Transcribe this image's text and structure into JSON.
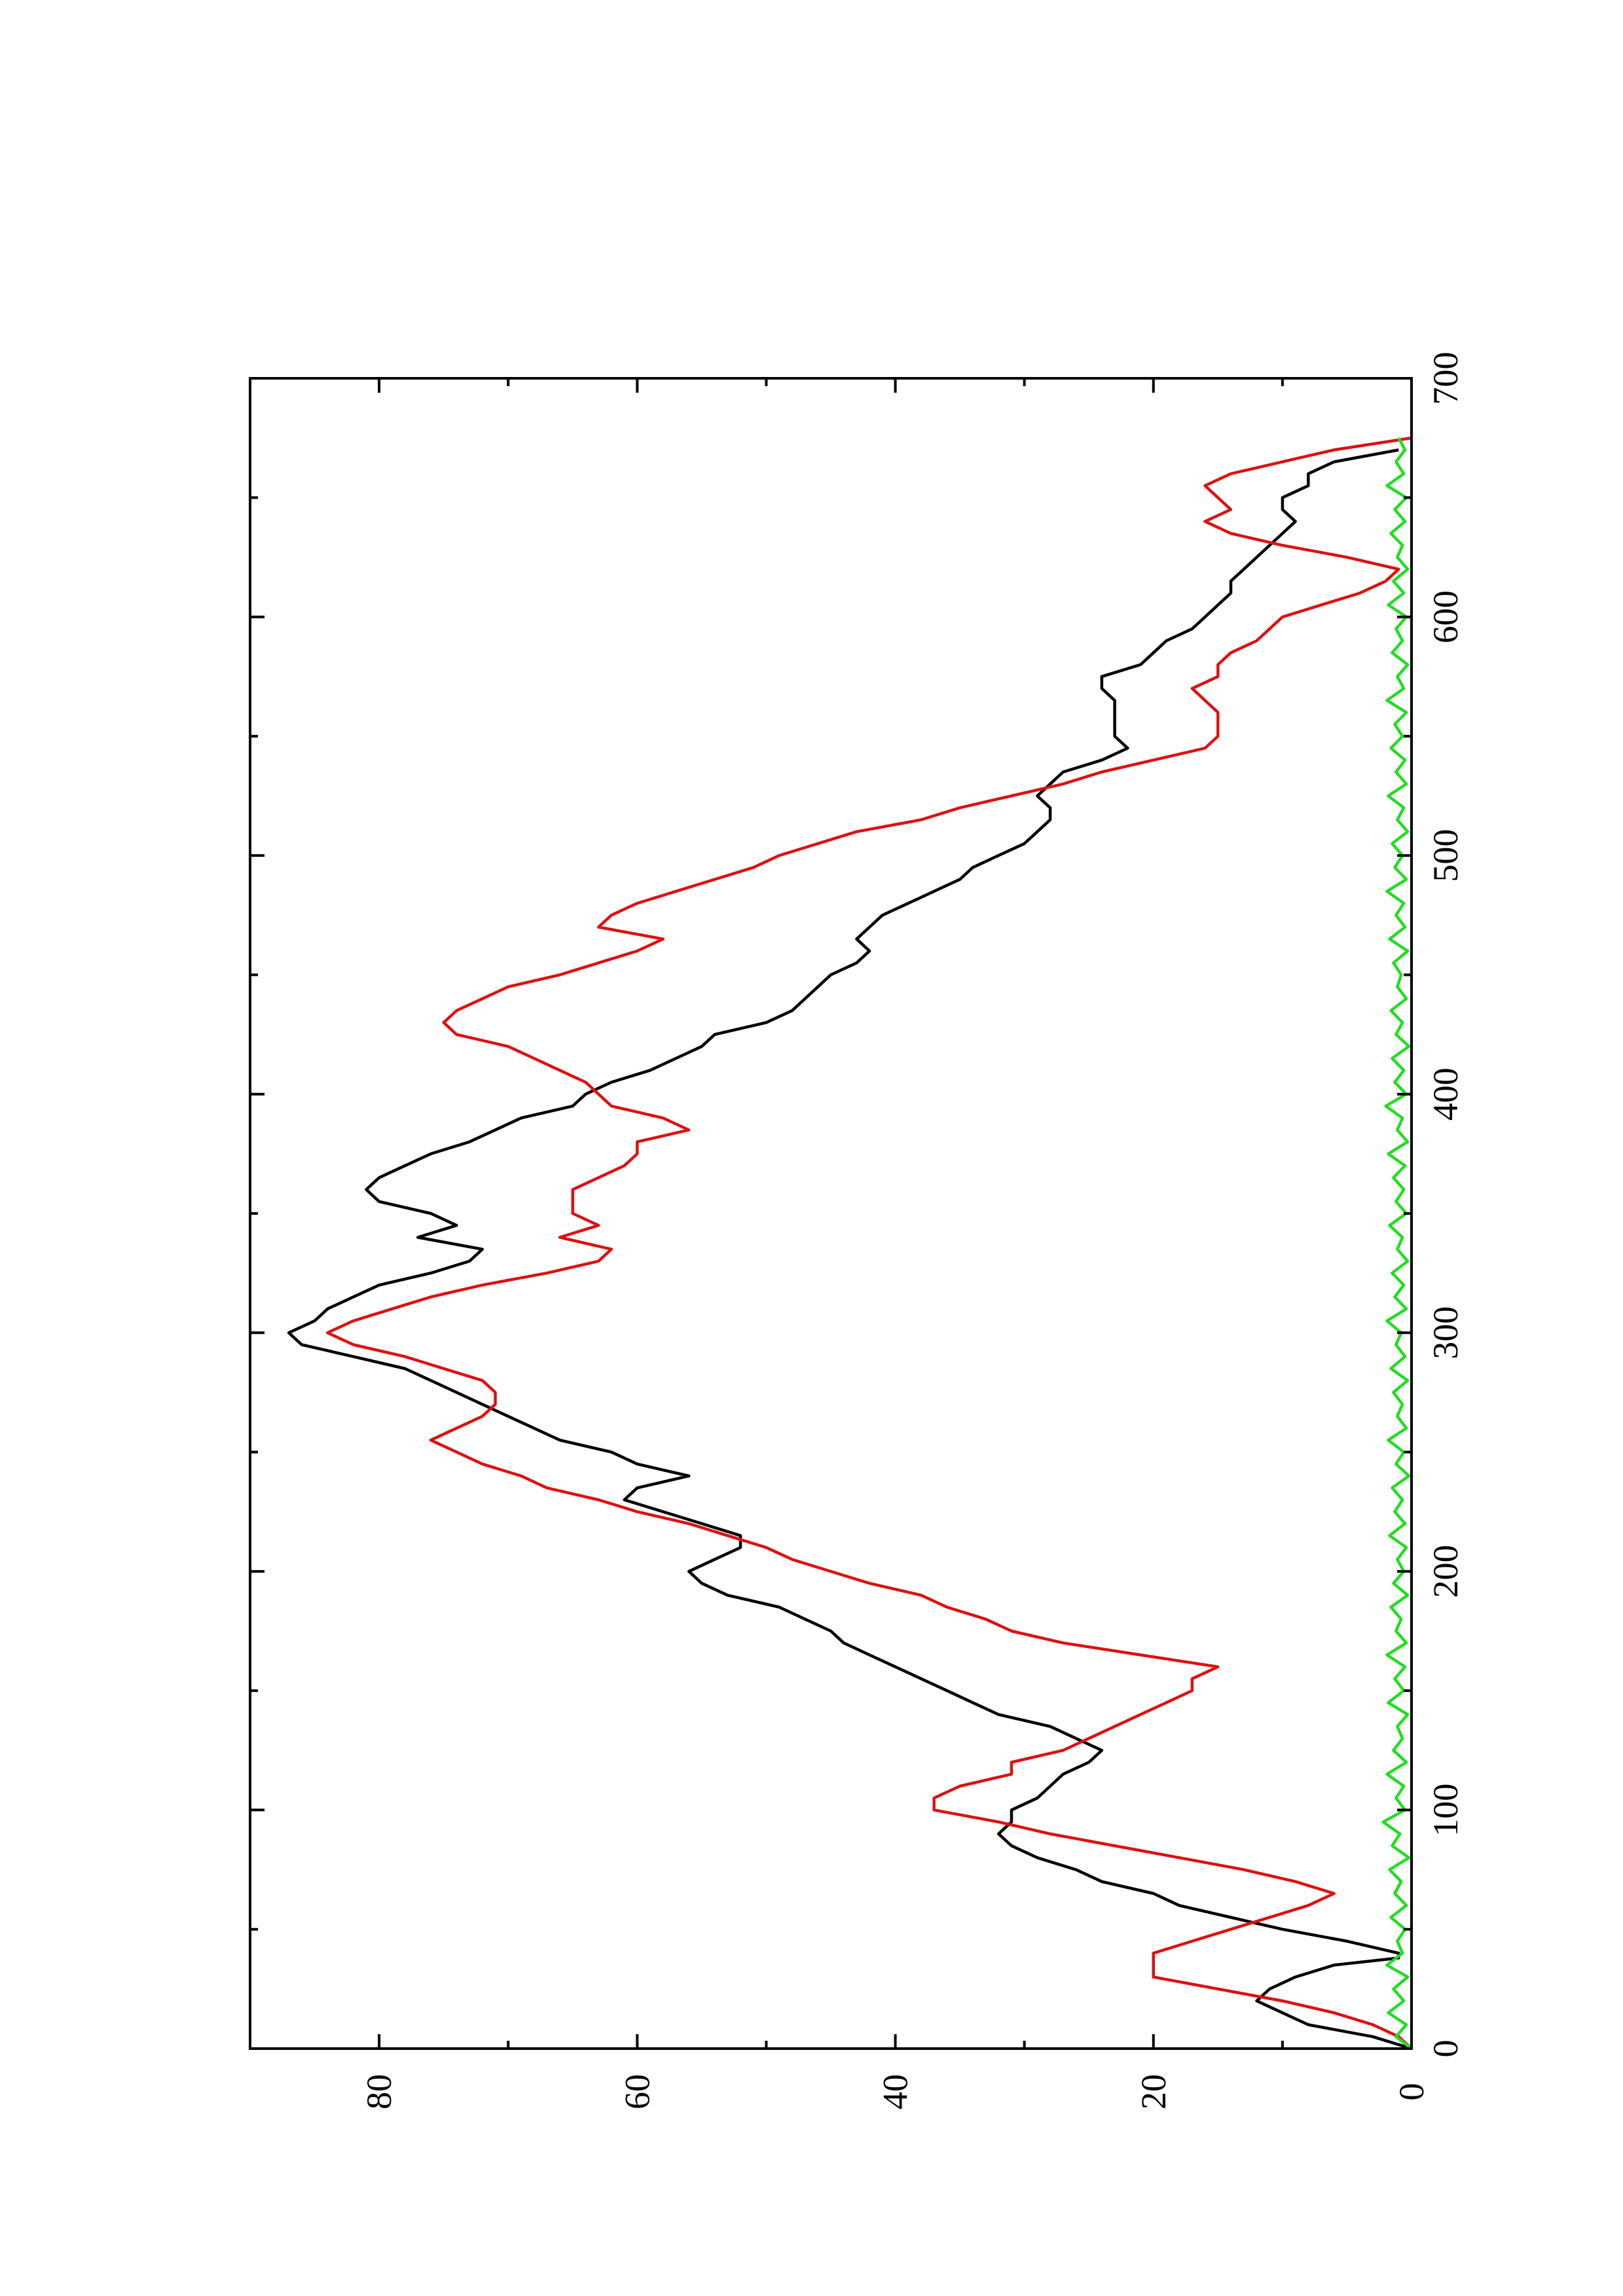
{
  "chart_data": {
    "type": "line",
    "orientation": "rotated-90-ccw",
    "title": "",
    "xlabel": "",
    "ylabel": "",
    "xlim": [
      0,
      700
    ],
    "ylim": [
      0,
      90
    ],
    "x_ticks": [
      0,
      100,
      200,
      300,
      400,
      500,
      600,
      700
    ],
    "x_tick_labels": [
      "0",
      "100",
      "200",
      "300",
      "400",
      "500",
      "600",
      "700"
    ],
    "x_minor_ticks": [
      50,
      150,
      250,
      350,
      450,
      550,
      650
    ],
    "y_ticks": [
      0,
      20,
      40,
      60,
      80
    ],
    "y_tick_labels": [
      "0",
      "20",
      "40",
      "60",
      "80"
    ],
    "y_minor_ticks": [
      10,
      30,
      50,
      70
    ],
    "grid": false,
    "legend": "none",
    "series": [
      {
        "color": "#000000",
        "x": [
          0,
          5,
          10,
          15,
          20,
          25,
          30,
          35,
          38,
          40,
          45,
          50,
          55,
          60,
          65,
          70,
          75,
          80,
          85,
          90,
          95,
          100,
          105,
          110,
          115,
          120,
          125,
          130,
          135,
          140,
          145,
          150,
          155,
          160,
          165,
          170,
          175,
          180,
          185,
          190,
          195,
          200,
          205,
          210,
          215,
          220,
          225,
          230,
          235,
          240,
          245,
          250,
          255,
          260,
          265,
          270,
          275,
          280,
          285,
          290,
          295,
          300,
          305,
          310,
          315,
          320,
          325,
          330,
          335,
          340,
          345,
          350,
          355,
          360,
          365,
          370,
          375,
          380,
          385,
          390,
          395,
          400,
          405,
          410,
          415,
          420,
          425,
          430,
          435,
          440,
          445,
          450,
          455,
          460,
          465,
          470,
          475,
          480,
          485,
          490,
          495,
          500,
          505,
          510,
          515,
          520,
          525,
          530,
          535,
          540,
          545,
          550,
          555,
          560,
          565,
          570,
          575,
          580,
          585,
          590,
          595,
          600,
          605,
          610,
          615,
          620,
          625,
          630,
          635,
          640,
          645,
          650,
          655,
          660,
          665,
          670
        ],
        "y": [
          0,
          3,
          8,
          10,
          12,
          11,
          9,
          6,
          1,
          1,
          5,
          10,
          14,
          18,
          20,
          24,
          26,
          29,
          31,
          32,
          31,
          31,
          29,
          28,
          27,
          25,
          24,
          26,
          28,
          32,
          34,
          36,
          38,
          40,
          42,
          44,
          45,
          47,
          49,
          53,
          55,
          56,
          54,
          52,
          52,
          55,
          58,
          61,
          60,
          56,
          60,
          62,
          66,
          68,
          70,
          72,
          74,
          76,
          78,
          82,
          86,
          87,
          85,
          84,
          82,
          80,
          76,
          73,
          72,
          77,
          74,
          76,
          80,
          81,
          80,
          78,
          76,
          73,
          71,
          69,
          65,
          64,
          62,
          59,
          57,
          55,
          54,
          50,
          48,
          47,
          46,
          45,
          43,
          42,
          43,
          42,
          41,
          39,
          37,
          35,
          34,
          32,
          30,
          29,
          28,
          28,
          29,
          28,
          27,
          24,
          22,
          23,
          23,
          23,
          23,
          24,
          24,
          21,
          20,
          19,
          17,
          16,
          15,
          14,
          14,
          13,
          12,
          11,
          10,
          9,
          10,
          10,
          8,
          8,
          6,
          1
        ]
      },
      {
        "color": "#dd1111",
        "x": [
          0,
          5,
          10,
          15,
          20,
          25,
          30,
          35,
          40,
          45,
          50,
          55,
          60,
          65,
          70,
          75,
          80,
          85,
          90,
          95,
          100,
          105,
          110,
          115,
          120,
          125,
          130,
          135,
          140,
          145,
          150,
          155,
          160,
          165,
          170,
          175,
          180,
          185,
          190,
          195,
          200,
          205,
          210,
          215,
          220,
          225,
          230,
          235,
          240,
          245,
          250,
          255,
          260,
          265,
          270,
          275,
          280,
          285,
          290,
          295,
          300,
          305,
          310,
          315,
          320,
          325,
          330,
          335,
          340,
          345,
          350,
          355,
          360,
          365,
          370,
          375,
          380,
          385,
          390,
          395,
          400,
          405,
          410,
          415,
          420,
          425,
          430,
          435,
          440,
          445,
          450,
          455,
          460,
          465,
          470,
          475,
          480,
          485,
          490,
          495,
          500,
          505,
          510,
          515,
          520,
          525,
          530,
          535,
          540,
          545,
          550,
          555,
          560,
          565,
          570,
          575,
          580,
          585,
          590,
          595,
          600,
          605,
          610,
          615,
          620,
          625,
          630,
          635,
          640,
          645,
          650,
          655,
          660,
          665,
          670,
          675
        ],
        "y": [
          0,
          1,
          3,
          6,
          10,
          15,
          20,
          20,
          20,
          17,
          14,
          11,
          8,
          6,
          9,
          13,
          18,
          23,
          28,
          32,
          37,
          37,
          35,
          31,
          31,
          27,
          25,
          23,
          21,
          19,
          17,
          17,
          15,
          21,
          27,
          31,
          33,
          36,
          38,
          42,
          45,
          48,
          50,
          53,
          56,
          60,
          63,
          67,
          69,
          72,
          74,
          76,
          74,
          72,
          71,
          71,
          72,
          75,
          78,
          82,
          84,
          82,
          79,
          76,
          72,
          67,
          63,
          62,
          66,
          63,
          65,
          65,
          65,
          63,
          61,
          60,
          60,
          56,
          58,
          62,
          63,
          64,
          66,
          68,
          70,
          74,
          75,
          74,
          72,
          70,
          66,
          63,
          60,
          58,
          63,
          62,
          60,
          57,
          54,
          51,
          49,
          46,
          43,
          38,
          35,
          31,
          27,
          24,
          20,
          16,
          15,
          15,
          15,
          16,
          17,
          15,
          15,
          14,
          12,
          11,
          10,
          7,
          4,
          2,
          1,
          5,
          10,
          14,
          16,
          14,
          15,
          16,
          14,
          10,
          6,
          0
        ]
      },
      {
        "color": "#22dd22",
        "x": [
          0,
          5,
          10,
          15,
          20,
          25,
          30,
          35,
          40,
          45,
          50,
          55,
          60,
          65,
          70,
          75,
          80,
          85,
          90,
          95,
          100,
          105,
          110,
          115,
          120,
          125,
          130,
          135,
          140,
          145,
          150,
          155,
          160,
          165,
          170,
          175,
          180,
          185,
          190,
          195,
          200,
          205,
          210,
          215,
          220,
          225,
          230,
          235,
          240,
          245,
          250,
          255,
          260,
          265,
          270,
          275,
          280,
          285,
          290,
          295,
          300,
          305,
          310,
          315,
          320,
          325,
          330,
          335,
          340,
          345,
          350,
          355,
          360,
          365,
          370,
          375,
          380,
          385,
          390,
          395,
          400,
          405,
          410,
          415,
          420,
          425,
          430,
          435,
          440,
          445,
          450,
          455,
          460,
          465,
          470,
          475,
          480,
          485,
          490,
          495,
          500,
          505,
          510,
          515,
          520,
          525,
          530,
          535,
          540,
          545,
          550,
          555,
          560,
          565,
          570,
          575,
          580,
          585,
          590,
          595,
          600,
          605,
          610,
          615,
          620,
          625,
          630,
          635,
          640,
          645,
          650,
          655,
          660,
          665,
          670,
          675
        ],
        "y": [
          0,
          1.2,
          0.4,
          1.8,
          0.6,
          1.4,
          0.3,
          1.9,
          0.7,
          1.1,
          0.5,
          1.6,
          0.4,
          1.3,
          0.8,
          1.7,
          0.2,
          1.5,
          0.9,
          2.2,
          0.5,
          1.2,
          0.6,
          1.9,
          0.4,
          1.4,
          0.7,
          1.1,
          0.3,
          1.8,
          0.6,
          1.3,
          0.5,
          1.9,
          0.4,
          1.2,
          0.8,
          1.6,
          0.3,
          1.4,
          0.6,
          1.1,
          0.4,
          1.7,
          0.5,
          1.3,
          0.7,
          1.5,
          0.2,
          1.2,
          0.6,
          1.8,
          0.4,
          1.1,
          0.7,
          1.4,
          0.3,
          1.6,
          0.5,
          1.2,
          0.8,
          1.9,
          0.4,
          1.3,
          0.6,
          1.5,
          0.3,
          1.1,
          0.7,
          1.7,
          0.4,
          1.2,
          0.6,
          1.4,
          0.5,
          1.8,
          0.3,
          1.1,
          0.7,
          2.0,
          0.4,
          1.3,
          0.6,
          1.5,
          0.2,
          1.2,
          0.7,
          1.6,
          0.4,
          1.1,
          0.8,
          1.4,
          0.3,
          1.7,
          0.5,
          1.2,
          0.6,
          1.9,
          0.4,
          1.3,
          0.7,
          1.5,
          0.3,
          1.1,
          0.6,
          1.8,
          0.4,
          1.2,
          0.5,
          1.6,
          0.7,
          1.3,
          0.4,
          1.9,
          0.6,
          1.1,
          0.3,
          1.5,
          0.7,
          1.2,
          0.4,
          1.8,
          0.6,
          1.4,
          0.3,
          1.1,
          0.7,
          1.6,
          0.5,
          1.3,
          0.4,
          1.9,
          0.6,
          1.2,
          0.5,
          1.0
        ]
      }
    ]
  }
}
